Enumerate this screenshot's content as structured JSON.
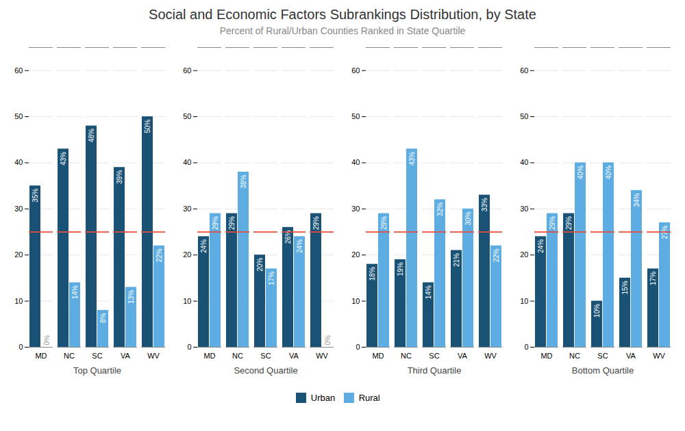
{
  "chart_data": {
    "type": "bar",
    "title": "Social and Economic Factors Subrankings Distribution, by State",
    "subtitle": "Percent of Rural/Urban Counties Ranked in State Quartile",
    "categories": [
      "MD",
      "NC",
      "SC",
      "VA",
      "WV"
    ],
    "groups": [
      "Top Quartile",
      "Second Quartile",
      "Third Quartile",
      "Bottom Quartile"
    ],
    "series": [
      {
        "name": "Urban",
        "color": "#1a5276",
        "values": [
          [
            35,
            43,
            48,
            39,
            50
          ],
          [
            24,
            29,
            20,
            26,
            29
          ],
          [
            18,
            19,
            14,
            21,
            33
          ],
          [
            24,
            29,
            10,
            15,
            17
          ]
        ],
        "value_labels": [
          [
            "35%",
            "43%",
            "48%",
            "39%",
            "50%"
          ],
          [
            "24%",
            "29%",
            "20%",
            "26%",
            "29%"
          ],
          [
            "18%",
            "19%",
            "14%",
            "21%",
            "33%"
          ],
          [
            "24%",
            "29%",
            "10%",
            "15%",
            "17%"
          ]
        ]
      },
      {
        "name": "Rural",
        "color": "#5dade2",
        "values": [
          [
            0,
            14,
            8,
            13,
            22
          ],
          [
            29,
            38,
            17,
            24,
            0
          ],
          [
            29,
            43,
            32,
            30,
            22
          ],
          [
            29,
            40,
            40,
            34,
            27
          ]
        ],
        "value_labels": [
          [
            "0%",
            "14%",
            "8%",
            "13%",
            "22%"
          ],
          [
            "29%",
            "38%",
            "17%",
            "24%",
            "0%"
          ],
          [
            "29%",
            "43%",
            "32%",
            "30%",
            "22%"
          ],
          [
            "29%",
            "40%",
            "40%",
            "34%",
            "27%"
          ]
        ]
      }
    ],
    "reference_lines": [
      {
        "y": 25,
        "color": "#e74c3c"
      }
    ],
    "ylim": [
      0,
      65
    ],
    "yticks": [
      0,
      10,
      20,
      30,
      40,
      50,
      60
    ],
    "grid": true,
    "data_labels": true,
    "legend": "bottom"
  }
}
